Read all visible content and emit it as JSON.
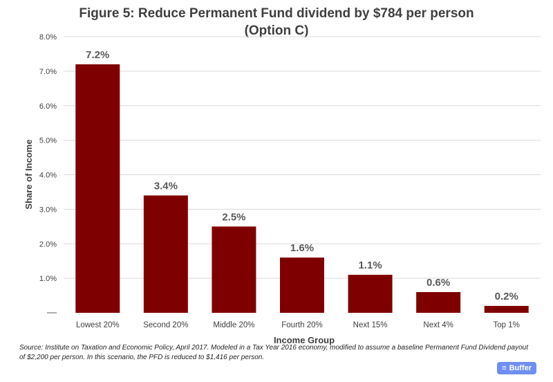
{
  "chart_data": {
    "type": "bar",
    "title": "Figure 5: Reduce Permanent Fund dividend by $784 per person",
    "subtitle": "(Option C)",
    "xlabel": "Income Group",
    "ylabel": "Share of Income",
    "categories": [
      "Lowest 20%",
      "Second 20%",
      "Middle 20%",
      "Fourth 20%",
      "Next 15%",
      "Next 4%",
      "Top 1%"
    ],
    "values": [
      7.2,
      3.4,
      2.5,
      1.6,
      1.1,
      0.6,
      0.2
    ],
    "data_labels": [
      "7.2%",
      "3.4%",
      "2.5%",
      "1.6%",
      "1.1%",
      "0.6%",
      "0.2%"
    ],
    "ylim": [
      0,
      8
    ],
    "yticks": [
      0,
      1,
      2,
      3,
      4,
      5,
      6,
      7,
      8
    ],
    "ytick_labels": [
      "",
      "1.0%",
      "2.0%",
      "3.0%",
      "4.0%",
      "5.0%",
      "6.0%",
      "7.0%",
      "8.0%"
    ],
    "grid": true,
    "bar_color": "#7f0000"
  },
  "source_note": "Source: Institute on Taxation and Economic Policy, April 2017.  Modeled in a Tax Year 2016 economy, modified to assume a baseline Permanent Fund Dividend payout of $2,200 per person. In this scenario, the PFD is reduced to $1,416 per person.",
  "buffer_badge": {
    "label": "Buffer",
    "icon": "buffer-stack-icon"
  }
}
